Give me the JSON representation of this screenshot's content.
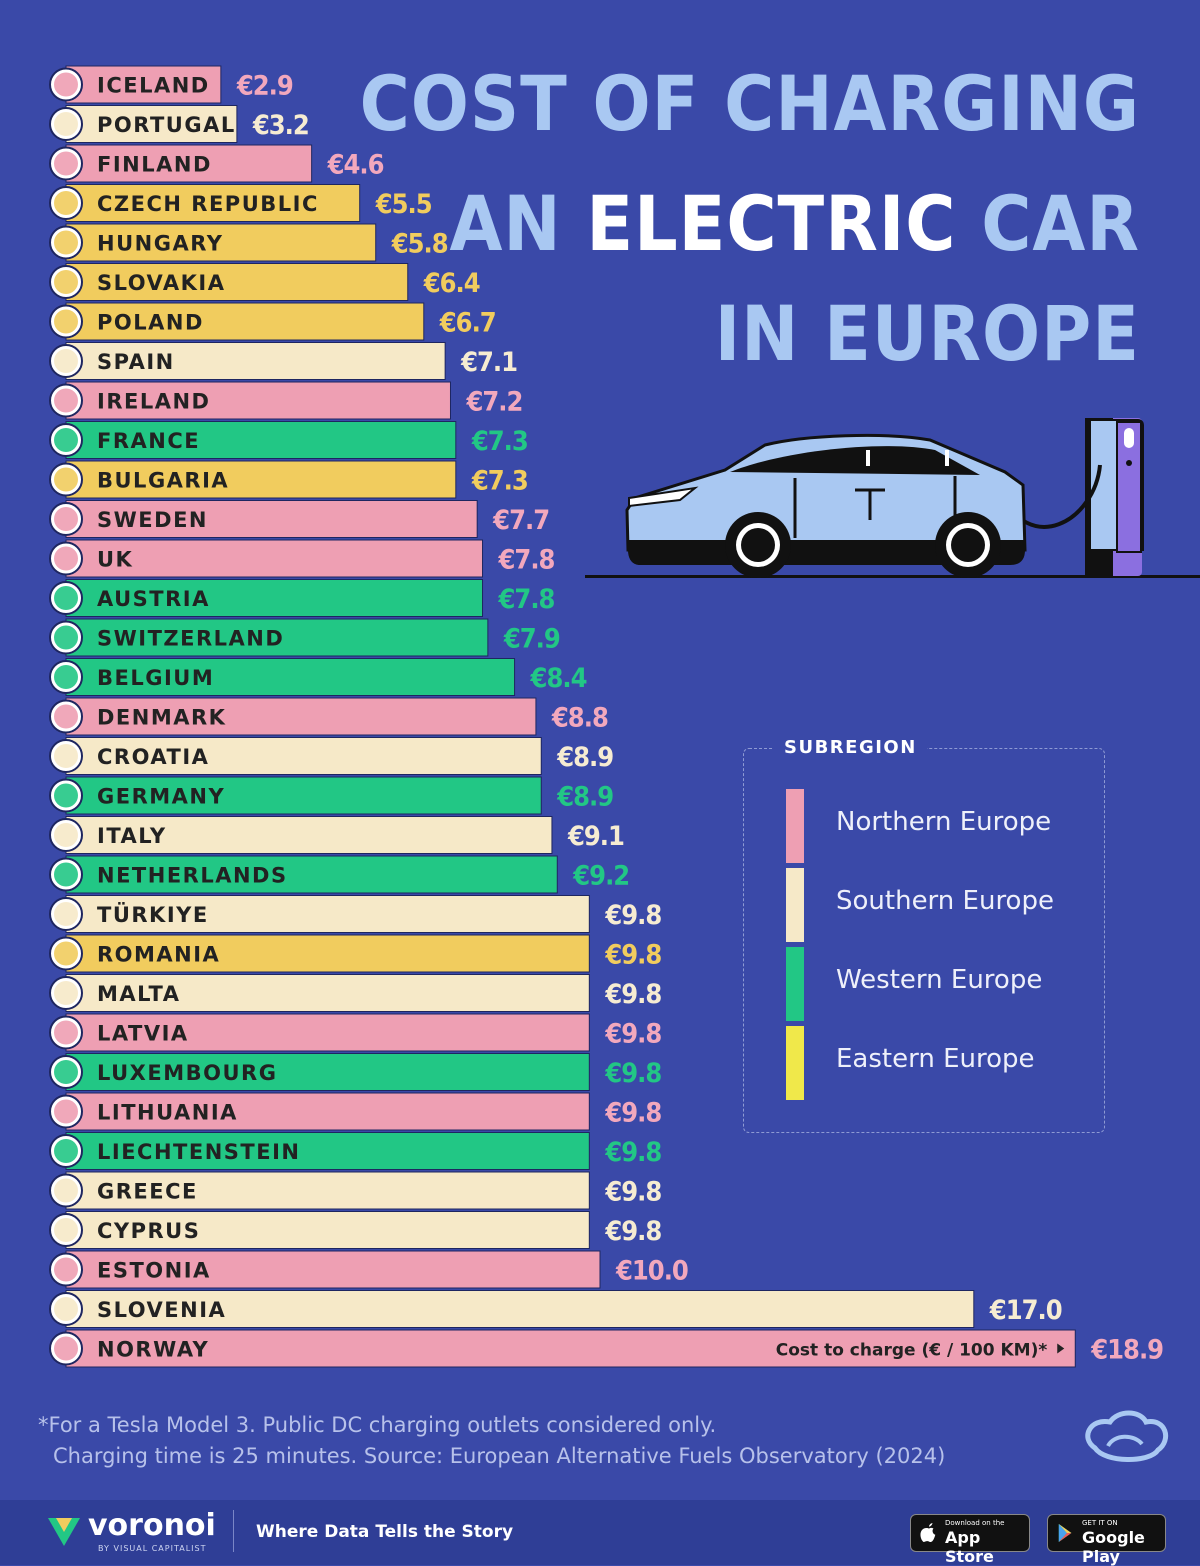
{
  "title": {
    "line1": "COST OF CHARGING",
    "line2a": "AN",
    "line2b": "ELECTRIC",
    "line2c": "CAR",
    "line3": "IN EUROPE"
  },
  "legend": {
    "title": "SUBREGION",
    "items": [
      {
        "label": "Northern Europe",
        "color": "#ee9fb3"
      },
      {
        "label": "Southern Europe",
        "color": "#f6e9c8"
      },
      {
        "label": "Western Europe",
        "color": "#22c785"
      },
      {
        "label": "Eastern Europe",
        "color": "#f0e84a"
      }
    ]
  },
  "chart_data": {
    "type": "bar",
    "orientation": "horizontal",
    "value_label": "Cost to charge (€ / 100 KM)*",
    "currency": "€",
    "categories": [
      "ICELAND",
      "PORTUGAL",
      "FINLAND",
      "CZECH REPUBLIC",
      "HUNGARY",
      "SLOVAKIA",
      "POLAND",
      "SPAIN",
      "IRELAND",
      "FRANCE",
      "BULGARIA",
      "SWEDEN",
      "UK",
      "AUSTRIA",
      "SWITZERLAND",
      "BELGIUM",
      "DENMARK",
      "CROATIA",
      "GERMANY",
      "ITALY",
      "NETHERLANDS",
      "TÜRKIYE",
      "ROMANIA",
      "MALTA",
      "LATVIA",
      "LUXEMBOURG",
      "LITHUANIA",
      "LIECHTENSTEIN",
      "GREECE",
      "CYPRUS",
      "ESTONIA",
      "SLOVENIA",
      "NORWAY"
    ],
    "values": [
      2.9,
      3.2,
      4.6,
      5.5,
      5.8,
      6.4,
      6.7,
      7.1,
      7.2,
      7.3,
      7.3,
      7.7,
      7.8,
      7.8,
      7.9,
      8.4,
      8.8,
      8.9,
      8.9,
      9.1,
      9.2,
      9.8,
      9.8,
      9.8,
      9.8,
      9.8,
      9.8,
      9.8,
      9.8,
      9.8,
      10.0,
      17.0,
      18.9
    ],
    "value_labels": [
      "€2.9",
      "€3.2",
      "€4.6",
      "€5.5",
      "€5.8",
      "€6.4",
      "€6.7",
      "€7.1",
      "€7.2",
      "€7.3",
      "€7.3",
      "€7.7",
      "€7.8",
      "€7.8",
      "€7.9",
      "€8.4",
      "€8.8",
      "€8.9",
      "€8.9",
      "€9.1",
      "€9.2",
      "€9.8",
      "€9.8",
      "€9.8",
      "€9.8",
      "€9.8",
      "€9.8",
      "€9.8",
      "€9.8",
      "€9.8",
      "€10.0",
      "€17.0",
      "€18.9"
    ],
    "subregions": [
      "Northern",
      "Southern",
      "Northern",
      "Eastern",
      "Eastern",
      "Eastern",
      "Eastern",
      "Southern",
      "Northern",
      "Western",
      "Eastern",
      "Northern",
      "Northern",
      "Western",
      "Western",
      "Western",
      "Northern",
      "Southern",
      "Western",
      "Southern",
      "Western",
      "Southern",
      "Eastern",
      "Southern",
      "Northern",
      "Western",
      "Northern",
      "Western",
      "Southern",
      "Southern",
      "Northern",
      "Southern",
      "Northern"
    ],
    "region_colors": {
      "Northern": {
        "bar": "#ee9fb3",
        "text": "#f2a8bd"
      },
      "Southern": {
        "bar": "#f6e9c8",
        "text": "#f6ecd2"
      },
      "Western": {
        "bar": "#22c785",
        "text": "#22c785"
      },
      "Eastern": {
        "bar": "#f1cc5e",
        "text": "#f1cc5e"
      }
    }
  },
  "footnote": {
    "line1": "*For a Tesla Model 3. Public DC charging outlets considered only.",
    "line2": "Charging time is 25 minutes. Source: European Alternative Fuels Observatory (2024)"
  },
  "footer": {
    "brand": "voronoi",
    "brand_sub": "BY VISUAL CAPITALIST",
    "tagline": "Where Data Tells the Story",
    "app_store_small": "Download on the",
    "app_store_big": "App Store",
    "play_small": "GET IT ON",
    "play_big": "Google Play"
  }
}
